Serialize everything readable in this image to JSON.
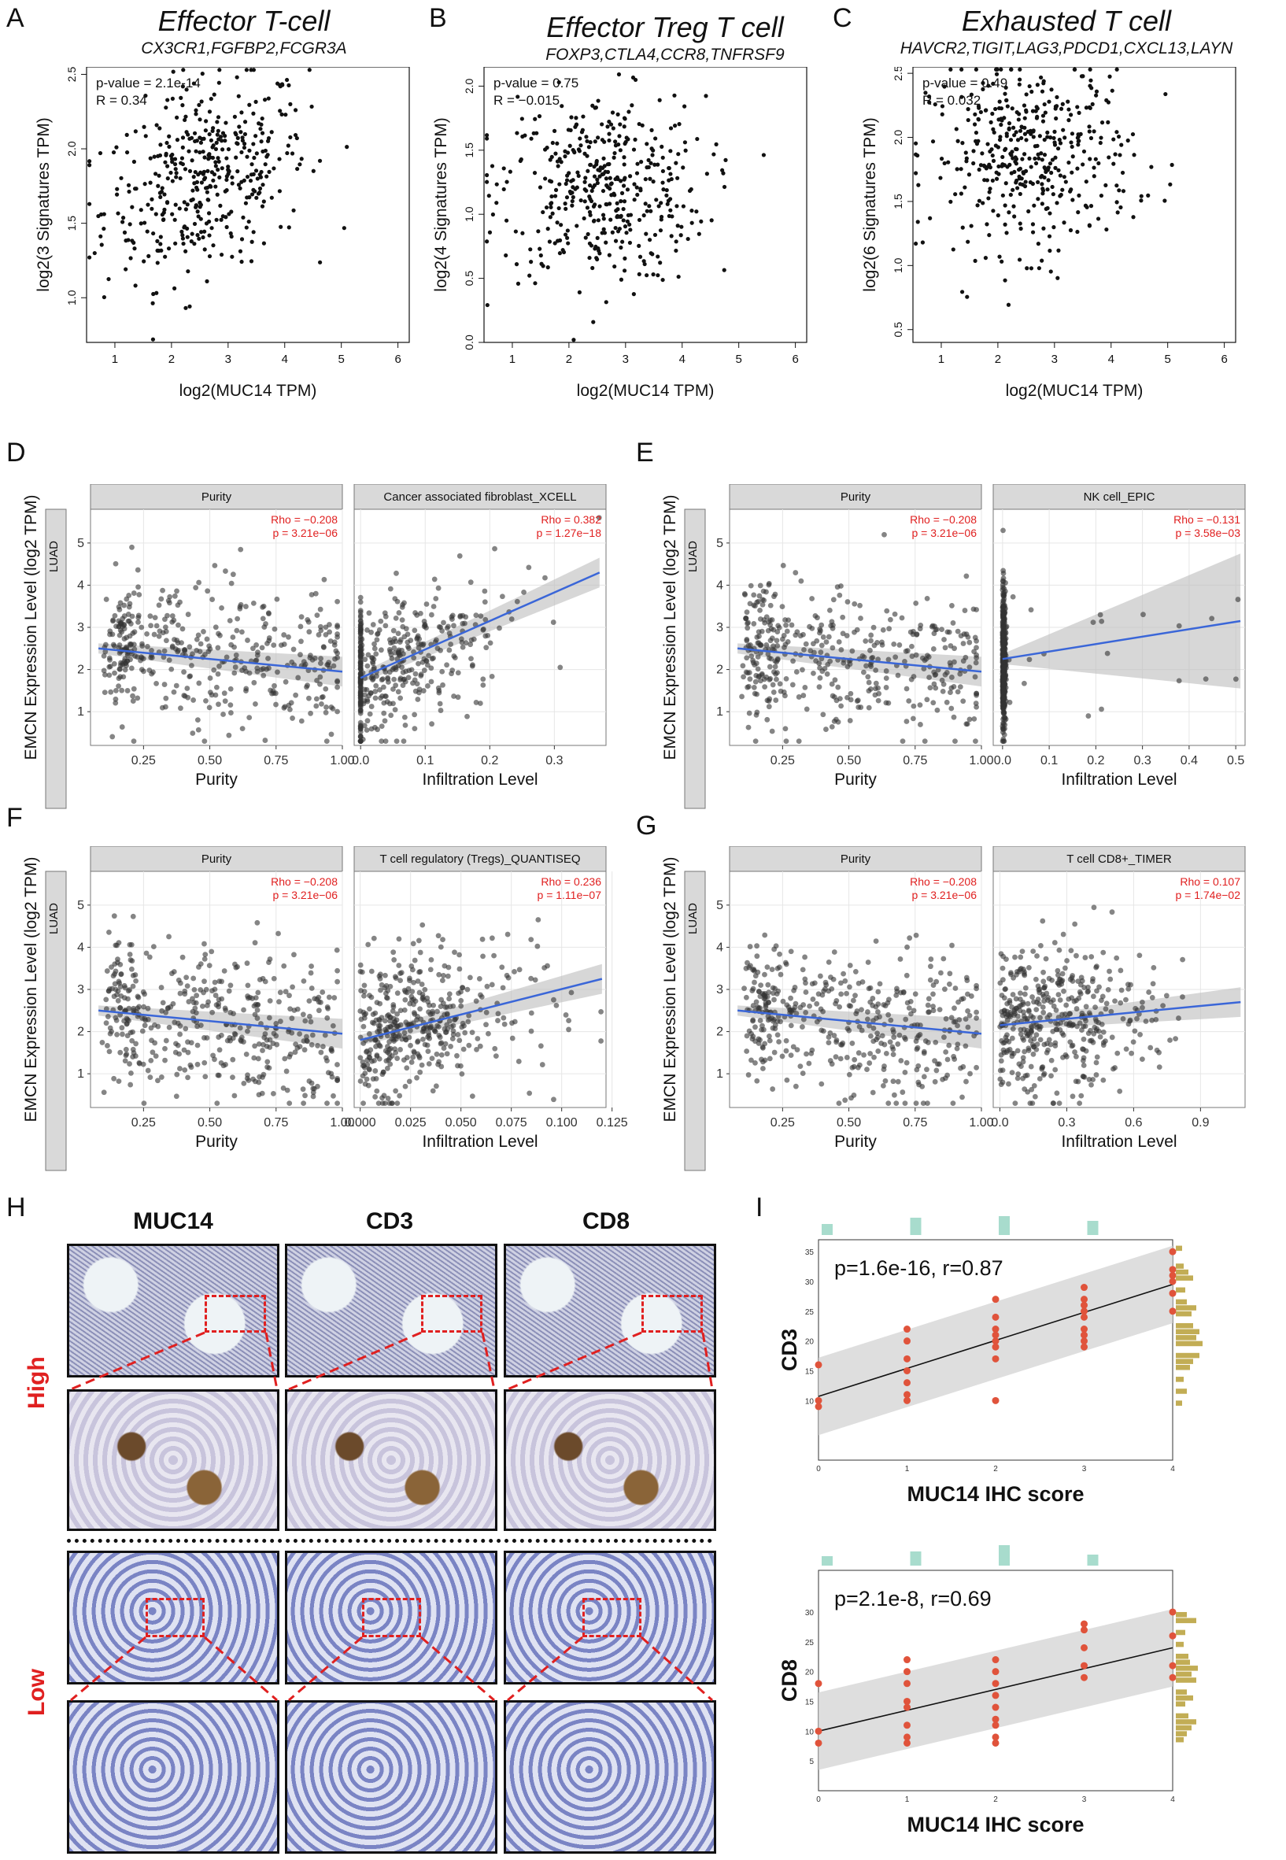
{
  "panels": {
    "A": {
      "letter": "A",
      "title": "Effector T-cell",
      "genes": "CX3CR1,FGFBP2,FCGR3A",
      "stat1": "p-value = 2.1e-14",
      "stat2": "R = 0.34",
      "xlabel": "log2(MUC14 TPM)",
      "ylabel": "log2(3 Signatures TPM)",
      "xticks": [
        "1",
        "2",
        "3",
        "4",
        "5",
        "6"
      ],
      "yticks": [
        "1.0",
        "1.5",
        "2.0",
        "2.5"
      ]
    },
    "B": {
      "letter": "B",
      "title": "Effector Treg T cell",
      "genes": "FOXP3,CTLA4,CCR8,TNFRSF9",
      "stat1": "p-value = 0.75",
      "stat2": "R = −0.015",
      "xlabel": "log2(MUC14 TPM)",
      "ylabel": "log2(4 Signatures TPM)",
      "xticks": [
        "1",
        "2",
        "3",
        "4",
        "5",
        "6"
      ],
      "yticks": [
        "0.0",
        "0.5",
        "1.0",
        "1.5",
        "2.0"
      ]
    },
    "C": {
      "letter": "C",
      "title": "Exhausted T cell",
      "genes": "HAVCR2,TIGIT,LAG3,PDCD1,CXCL13,LAYN",
      "stat1": "p-value = 0.49",
      "stat2": "R = 0.032",
      "xlabel": "log2(MUC14 TPM)",
      "ylabel": "log2(6 Signatures TPM)",
      "xticks": [
        "1",
        "2",
        "3",
        "4",
        "5",
        "6"
      ],
      "yticks": [
        "0.5",
        "1.0",
        "1.5",
        "2.0",
        "2.5"
      ]
    },
    "D": {
      "letter": "D",
      "ylabel": "EMCN Expression Level (log2 TPM)",
      "strip": "LUAD",
      "facets": [
        {
          "title": "Purity",
          "rho": "Rho = −0.208",
          "p": "p = 3.21e−06",
          "xlabel": "Purity",
          "xticks": [
            "0.25",
            "0.50",
            "0.75",
            "1.00"
          ]
        },
        {
          "title": "Cancer associated fibroblast_XCELL",
          "rho": "Rho = 0.382",
          "p": "p = 1.27e−18",
          "xlabel": "Infiltration Level",
          "xticks": [
            "0.0",
            "0.1",
            "0.2",
            "0.3"
          ]
        }
      ],
      "yticks": [
        "1",
        "2",
        "3",
        "4",
        "5"
      ]
    },
    "E": {
      "letter": "E",
      "ylabel": "EMCN Expression Level (log2 TPM)",
      "strip": "LUAD",
      "facets": [
        {
          "title": "Purity",
          "rho": "Rho = −0.208",
          "p": "p = 3.21e−06",
          "xlabel": "Purity",
          "xticks": [
            "0.25",
            "0.50",
            "0.75",
            "1.00"
          ]
        },
        {
          "title": "NK cell_EPIC",
          "rho": "Rho = −0.131",
          "p": "p = 3.58e−03",
          "xlabel": "Infiltration Level",
          "xticks": [
            "0.0",
            "0.1",
            "0.2",
            "0.3",
            "0.4",
            "0.5"
          ]
        }
      ],
      "yticks": [
        "1",
        "2",
        "3",
        "4",
        "5"
      ]
    },
    "F": {
      "letter": "F",
      "ylabel": "EMCN Expression Level (log2 TPM)",
      "strip": "LUAD",
      "facets": [
        {
          "title": "Purity",
          "rho": "Rho = −0.208",
          "p": "p = 3.21e−06",
          "xlabel": "Purity",
          "xticks": [
            "0.25",
            "0.50",
            "0.75",
            "1.00"
          ]
        },
        {
          "title": "T cell regulatory (Tregs)_QUANTISEQ",
          "rho": "Rho = 0.236",
          "p": "p = 1.11e−07",
          "xlabel": "Infiltration Level",
          "xticks": [
            "0.000",
            "0.025",
            "0.050",
            "0.075",
            "0.100",
            "0.125"
          ]
        }
      ],
      "yticks": [
        "1",
        "2",
        "3",
        "4",
        "5"
      ]
    },
    "G": {
      "letter": "G",
      "ylabel": "EMCN Expression Level (log2 TPM)",
      "strip": "LUAD",
      "facets": [
        {
          "title": "Purity",
          "rho": "Rho = −0.208",
          "p": "p = 3.21e−06",
          "xlabel": "Purity",
          "xticks": [
            "0.25",
            "0.50",
            "0.75",
            "1.00"
          ]
        },
        {
          "title": "T cell CD8+_TIMER",
          "rho": "Rho = 0.107",
          "p": "p = 1.74e−02",
          "xlabel": "Infiltration Level",
          "xticks": [
            "0.0",
            "0.3",
            "0.6",
            "0.9"
          ]
        }
      ],
      "yticks": [
        "1",
        "2",
        "3",
        "4",
        "5"
      ]
    },
    "H": {
      "letter": "H",
      "cols": [
        "MUC14",
        "CD3",
        "CD8"
      ],
      "rows": [
        "High",
        "Low"
      ]
    },
    "I": {
      "letter": "I",
      "top": {
        "stat": "p=1.6e-16, r=0.87",
        "xlabel": "MUC14 IHC score",
        "ylabel": "CD3",
        "xticks": [
          "0",
          "1",
          "2",
          "3",
          "4"
        ],
        "yticks": [
          "10",
          "15",
          "20",
          "25",
          "30",
          "35"
        ]
      },
      "bottom": {
        "stat": "p=2.1e-8, r=0.69",
        "xlabel": "MUC14 IHC score",
        "ylabel": "CD8",
        "xticks": [
          "0",
          "1",
          "2",
          "3",
          "4"
        ],
        "yticks": [
          "5",
          "10",
          "15",
          "20",
          "25",
          "30"
        ]
      }
    }
  },
  "chart_data": [
    {
      "type": "scatter",
      "title": "Effector T-cell",
      "subtitle": "CX3CR1,FGFBP2,FCGR3A",
      "xlabel": "log2(MUC14 TPM)",
      "ylabel": "log2(3 Signatures TPM)",
      "xlim": [
        0.5,
        6.2
      ],
      "ylim": [
        0.7,
        2.55
      ],
      "n": 420,
      "x_mean": 2.6,
      "y_mean": 1.8,
      "slope": 0.12,
      "annotations": [
        "p-value = 2.1e-14",
        "R = 0.34"
      ]
    },
    {
      "type": "scatter",
      "title": "Effector Treg T cell",
      "subtitle": "FOXP3,CTLA4,CCR8,TNFRSF9",
      "xlabel": "log2(MUC14 TPM)",
      "ylabel": "log2(4 Signatures TPM)",
      "xlim": [
        0.5,
        6.2
      ],
      "ylim": [
        0,
        2.15
      ],
      "n": 420,
      "x_mean": 2.6,
      "y_mean": 1.2,
      "slope": -0.01,
      "annotations": [
        "p-value = 0.75",
        "R = −0.015"
      ]
    },
    {
      "type": "scatter",
      "title": "Exhausted T cell",
      "subtitle": "HAVCR2,TIGIT,LAG3,PDCD1,CXCL13,LAYN",
      "xlabel": "log2(MUC14 TPM)",
      "ylabel": "log2(6 Signatures TPM)",
      "xlim": [
        0.5,
        6.2
      ],
      "ylim": [
        0.4,
        2.55
      ],
      "n": 420,
      "x_mean": 2.6,
      "y_mean": 1.85,
      "slope": 0.02,
      "annotations": [
        "p-value = 0.49",
        "R = 0.032"
      ]
    },
    {
      "type": "scatter",
      "panel": "D-purity",
      "xlim": [
        0.05,
        1.0
      ],
      "ylim": [
        0.2,
        5.8
      ],
      "fit": {
        "x": [
          0.08,
          1.0
        ],
        "y": [
          2.5,
          1.95
        ]
      }
    },
    {
      "type": "scatter",
      "panel": "D-CAF",
      "xlim": [
        -0.01,
        0.38
      ],
      "ylim": [
        0.2,
        5.8
      ],
      "fit": {
        "x": [
          0.0,
          0.37
        ],
        "y": [
          1.8,
          4.3
        ]
      }
    },
    {
      "type": "scatter",
      "panel": "E-purity",
      "xlim": [
        0.05,
        1.0
      ],
      "ylim": [
        0.2,
        5.8
      ],
      "fit": {
        "x": [
          0.08,
          1.0
        ],
        "y": [
          2.5,
          1.95
        ]
      }
    },
    {
      "type": "scatter",
      "panel": "E-NK",
      "xlim": [
        -0.02,
        0.52
      ],
      "ylim": [
        0.2,
        5.8
      ],
      "fit": {
        "x": [
          0.0,
          0.51
        ],
        "y": [
          2.25,
          3.15
        ]
      }
    },
    {
      "type": "scatter",
      "panel": "F-purity",
      "xlim": [
        0.05,
        1.0
      ],
      "ylim": [
        0.2,
        5.8
      ],
      "fit": {
        "x": [
          0.08,
          1.0
        ],
        "y": [
          2.5,
          1.95
        ]
      }
    },
    {
      "type": "scatter",
      "panel": "F-Treg",
      "xlim": [
        -0.003,
        0.122
      ],
      "ylim": [
        0.2,
        5.8
      ],
      "fit": {
        "x": [
          0.0,
          0.12
        ],
        "y": [
          1.8,
          3.25
        ]
      }
    },
    {
      "type": "scatter",
      "panel": "G-purity",
      "xlim": [
        0.05,
        1.0
      ],
      "ylim": [
        0.2,
        5.8
      ],
      "fit": {
        "x": [
          0.08,
          1.0
        ],
        "y": [
          2.5,
          1.95
        ]
      }
    },
    {
      "type": "scatter",
      "panel": "G-CD8",
      "xlim": [
        -0.03,
        1.1
      ],
      "ylim": [
        0.2,
        5.8
      ],
      "fit": {
        "x": [
          0.0,
          1.08
        ],
        "y": [
          2.15,
          2.7
        ]
      }
    },
    {
      "type": "scatter",
      "panel": "I-CD3",
      "xlabel": "MUC14 IHC score",
      "ylabel": "CD3",
      "xlim": [
        0,
        4
      ],
      "ylim": [
        0,
        37
      ],
      "points": [
        [
          0,
          9
        ],
        [
          0,
          10
        ],
        [
          0,
          16
        ],
        [
          1,
          10
        ],
        [
          1,
          11
        ],
        [
          1,
          13
        ],
        [
          1,
          15
        ],
        [
          1,
          17
        ],
        [
          1,
          20
        ],
        [
          1,
          22
        ],
        [
          2,
          10
        ],
        [
          2,
          17
        ],
        [
          2,
          19
        ],
        [
          2,
          20
        ],
        [
          2,
          21
        ],
        [
          2,
          22
        ],
        [
          2,
          24
        ],
        [
          2,
          27
        ],
        [
          3,
          19
        ],
        [
          3,
          20
        ],
        [
          3,
          21
        ],
        [
          3,
          22
        ],
        [
          3,
          24
        ],
        [
          3,
          25
        ],
        [
          3,
          26
        ],
        [
          3,
          27
        ],
        [
          3,
          29
        ],
        [
          4,
          25
        ],
        [
          4,
          28
        ],
        [
          4,
          30
        ],
        [
          4,
          31
        ],
        [
          4,
          32
        ],
        [
          4,
          35
        ]
      ],
      "fit": {
        "x": [
          0,
          4
        ],
        "y": [
          10.7,
          29.5
        ]
      }
    },
    {
      "type": "scatter",
      "panel": "I-CD8",
      "xlabel": "MUC14 IHC score",
      "ylabel": "CD8",
      "xlim": [
        0,
        4
      ],
      "ylim": [
        0,
        37
      ],
      "points": [
        [
          0,
          8
        ],
        [
          0,
          10
        ],
        [
          0,
          18
        ],
        [
          1,
          8
        ],
        [
          1,
          9
        ],
        [
          1,
          11
        ],
        [
          1,
          14
        ],
        [
          1,
          15
        ],
        [
          1,
          18
        ],
        [
          1,
          20
        ],
        [
          1,
          22
        ],
        [
          2,
          8
        ],
        [
          2,
          9
        ],
        [
          2,
          11
        ],
        [
          2,
          12
        ],
        [
          2,
          14
        ],
        [
          2,
          16
        ],
        [
          2,
          18
        ],
        [
          2,
          20
        ],
        [
          2,
          22
        ],
        [
          3,
          19
        ],
        [
          3,
          21
        ],
        [
          3,
          24
        ],
        [
          3,
          27
        ],
        [
          3,
          28
        ],
        [
          4,
          19
        ],
        [
          4,
          21
        ],
        [
          4,
          26
        ],
        [
          4,
          30
        ]
      ],
      "fit": {
        "x": [
          0,
          4
        ],
        "y": [
          10,
          24
        ]
      }
    }
  ]
}
